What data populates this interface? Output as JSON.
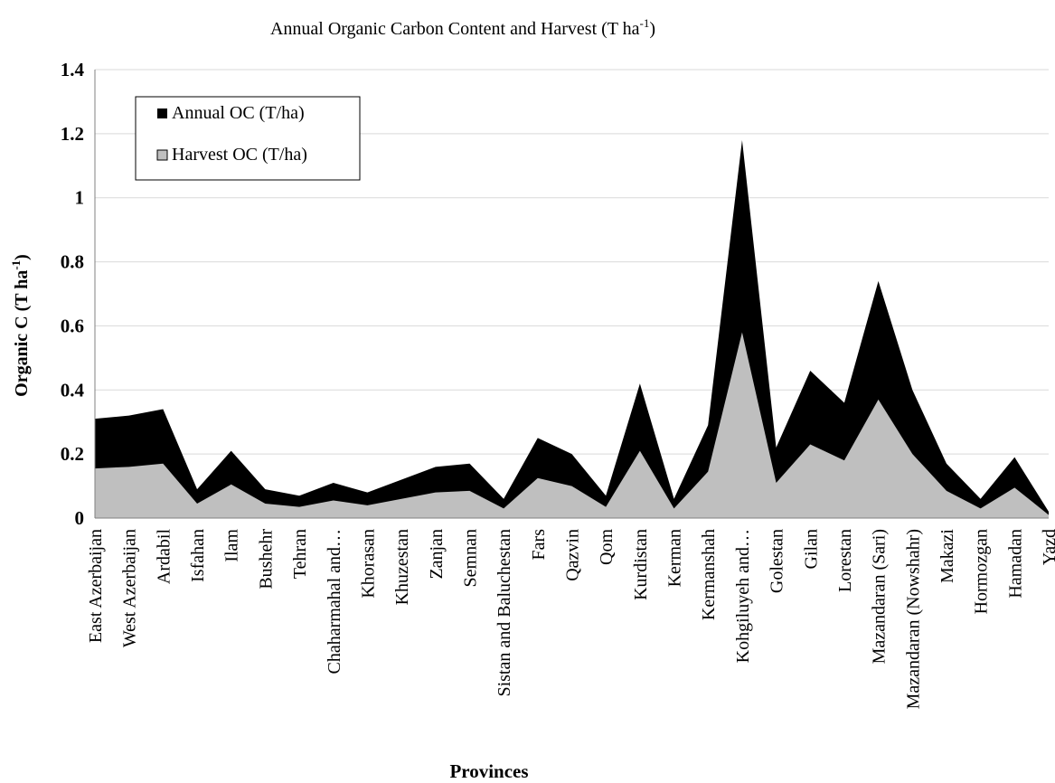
{
  "chart_data": {
    "type": "area",
    "title": "Annual Organic Carbon Content and Harvest (T ha",
    "title_sup": "-1",
    "title_end": ")",
    "xlabel": "Provinces",
    "ylabel": "Organic C (T ha",
    "ylabel_sup": "-1",
    "ylabel_end": ")",
    "ylim": [
      0,
      1.4
    ],
    "yticks": [
      "0",
      "0.2",
      "0.4",
      "0.6",
      "0.8",
      "1",
      "1.2",
      "1.4"
    ],
    "grid": true,
    "legend_position": "top-left",
    "categories": [
      "East Azerbaijan",
      "West Azerbaijan",
      "Ardabil",
      "Isfahan",
      "Ilam",
      "Bushehr",
      "Tehran",
      "Chaharmahal and…",
      "Khorasan",
      "Khuzestan",
      "Zanjan",
      "Semnan",
      "Sistan and Baluchestan",
      "Fars",
      "Qazvin",
      "Qom",
      "Kurdistan",
      "Kerman",
      "Kermanshah",
      "Kohgiluyeh and…",
      "Golestan",
      "Gilan",
      "Lorestan",
      "Mazandaran (Sari)",
      "Mazandaran (Nowshahr)",
      "Makazi",
      "Hormozgan",
      "Hamadan",
      "Yazd"
    ],
    "series": [
      {
        "name": "Annual OC (T/ha)",
        "color": "#000000",
        "values": [
          0.31,
          0.32,
          0.34,
          0.09,
          0.21,
          0.09,
          0.07,
          0.11,
          0.08,
          0.12,
          0.16,
          0.17,
          0.06,
          0.25,
          0.2,
          0.07,
          0.42,
          0.06,
          0.29,
          1.18,
          0.22,
          0.46,
          0.36,
          0.74,
          0.4,
          0.17,
          0.06,
          0.19,
          0.02
        ]
      },
      {
        "name": "Harvest OC (T/ha)",
        "color": "#bfbfbf",
        "values": [
          0.155,
          0.16,
          0.17,
          0.045,
          0.105,
          0.045,
          0.035,
          0.055,
          0.04,
          0.06,
          0.08,
          0.085,
          0.03,
          0.125,
          0.1,
          0.035,
          0.21,
          0.03,
          0.145,
          0.58,
          0.11,
          0.23,
          0.18,
          0.37,
          0.2,
          0.085,
          0.03,
          0.095,
          0.01
        ]
      }
    ]
  }
}
